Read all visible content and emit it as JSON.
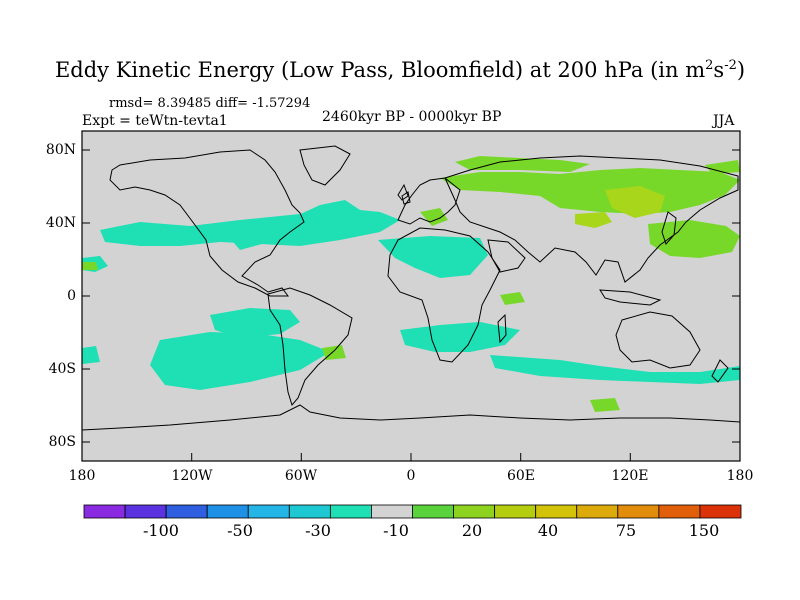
{
  "title": {
    "main": "Eddy Kinetic Energy (Low Pass, Bloomfield) at 200 hPa (in m",
    "sup1": "2",
    "mid": "s",
    "sup2": "-2",
    "end": ")"
  },
  "stats": "rmsd= 8.39485 diff= -1.57294",
  "expt": "Expt = teWtn-tevta1",
  "period": "2460kyr BP - 0000kyr BP",
  "season": "JJA",
  "lat_ticks": [
    "80N",
    "40N",
    "0",
    "40S",
    "80S"
  ],
  "lon_ticks": [
    "180",
    "120W",
    "60W",
    "0",
    "60E",
    "120E",
    "180"
  ],
  "colorbar": {
    "labels": [
      "-100",
      "-50",
      "-30",
      "-10",
      "20",
      "40",
      "75",
      "150"
    ],
    "colors": [
      "#8a2be2",
      "#5a32e0",
      "#2f5fe0",
      "#1e90e6",
      "#25b4e6",
      "#1ec8d2",
      "#1ee0b4",
      "#d3d3d3",
      "#5ad23c",
      "#8cd21e",
      "#b4cd0f",
      "#d2c30a",
      "#dcaa0a",
      "#e18c0a",
      "#e15f0a",
      "#dc320a"
    ]
  },
  "map": {
    "land_color": "#d3d3d3",
    "neg_color": "#1ee0b4",
    "pos_light_color": "#78d82a",
    "pos_dark_color": "#a8d61a"
  }
}
